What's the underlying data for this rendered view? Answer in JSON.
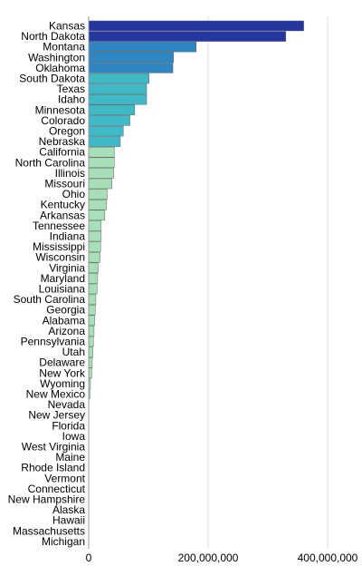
{
  "chart_data": {
    "type": "bar",
    "orientation": "horizontal",
    "title": "",
    "xlabel": "",
    "ylabel": "",
    "xlim": [
      0,
      400000000
    ],
    "grid": true,
    "x_ticks": [
      {
        "value": 0,
        "label": "0"
      },
      {
        "value": 200000000,
        "label": "200,000,000"
      },
      {
        "value": 400000000,
        "label": "400,000,000"
      }
    ],
    "categories": [
      "Kansas",
      "North Dakota",
      "Montana",
      "Washington",
      "Oklahoma",
      "South Dakota",
      "Texas",
      "Idaho",
      "Minnesota",
      "Colorado",
      "Oregon",
      "Nebraska",
      "California",
      "North Carolina",
      "Illinois",
      "Missouri",
      "Ohio",
      "Kentucky",
      "Arkansas",
      "Tennessee",
      "Indiana",
      "Mississippi",
      "Wisconsin",
      "Virginia",
      "Maryland",
      "Louisiana",
      "South Carolina",
      "Georgia",
      "Alabama",
      "Arizona",
      "Pennsylvania",
      "Utah",
      "Delaware",
      "New York",
      "Wyoming",
      "New Mexico",
      "Nevada",
      "New Jersey",
      "Florida",
      "Iowa",
      "West Virginia",
      "Maine",
      "Rhode Island",
      "Vermont",
      "Connecticut",
      "New Hampshire",
      "Alaska",
      "Hawaii",
      "Massachusetts",
      "Michigan"
    ],
    "values": [
      360000000,
      330000000,
      180000000,
      142000000,
      141000000,
      101000000,
      97000000,
      97000000,
      77000000,
      69000000,
      58000000,
      53000000,
      43000000,
      43000000,
      42000000,
      39000000,
      31000000,
      30000000,
      27000000,
      21000000,
      21000000,
      20000000,
      19000000,
      16000000,
      15000000,
      14000000,
      12000000,
      11000000,
      10000000,
      9000000,
      8000000,
      7000000,
      6000000,
      5000000,
      3000000,
      2000000,
      800000,
      500000,
      400000,
      300000,
      200000,
      100000,
      100000,
      100000,
      100000,
      100000,
      100000,
      100000,
      100000,
      100000
    ],
    "colors": [
      "#2636a0",
      "#2636a0",
      "#2f86c3",
      "#2f86c3",
      "#2f86c3",
      "#3fb8c7",
      "#3fb8c7",
      "#3fb8c7",
      "#3fb8c7",
      "#3fb8c7",
      "#3fb8c7",
      "#3fb8c7",
      "#a6dfb8",
      "#a6dfb8",
      "#a6dfb8",
      "#a6dfb8",
      "#a6dfb8",
      "#a6dfb8",
      "#a6dfb8",
      "#a6dfb8",
      "#a6dfb8",
      "#a6dfb8",
      "#a6dfb8",
      "#a6dfb8",
      "#a6dfb8",
      "#a6dfb8",
      "#a6dfb8",
      "#a6dfb8",
      "#a6dfb8",
      "#a6dfb8",
      "#a6dfb8",
      "#a6dfb8",
      "#a6dfb8",
      "#a6dfb8",
      "#a6dfb8",
      "#a6dfb8",
      "#a6dfb8",
      "#a6dfb8",
      "#a6dfb8",
      "#a6dfb8",
      "#a6dfb8",
      "#a6dfb8",
      "#a6dfb8",
      "#a6dfb8",
      "#a6dfb8",
      "#a6dfb8",
      "#a6dfb8",
      "#a6dfb8",
      "#a6dfb8",
      "#a6dfb8"
    ]
  }
}
